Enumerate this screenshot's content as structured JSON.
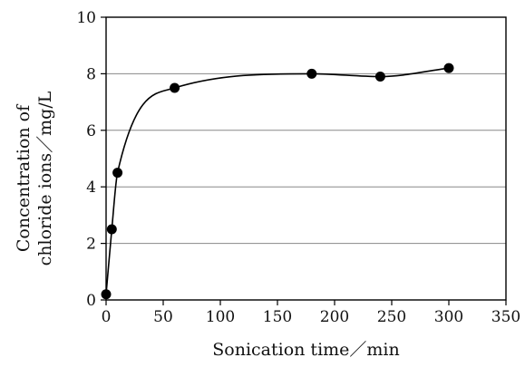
{
  "chart_data": {
    "type": "scatter",
    "xlabel": "Sonication time／min",
    "ylabel_lines": [
      "Concentration of",
      "chloride ions／mg/L"
    ],
    "xlim": [
      0,
      350
    ],
    "ylim": [
      0,
      10
    ],
    "x_ticks": [
      0,
      50,
      100,
      150,
      200,
      250,
      300,
      350
    ],
    "y_ticks": [
      0,
      2,
      4,
      6,
      8,
      10
    ],
    "grid": "horizontal",
    "smooth_line": true,
    "series": [
      {
        "x": [
          0,
          5,
          10,
          60,
          180,
          240,
          300
        ],
        "y": [
          0.2,
          2.5,
          4.5,
          7.5,
          8.0,
          7.9,
          8.2
        ]
      }
    ],
    "colors": {
      "marker": "#000000",
      "line": "#000000",
      "grid": "#888888"
    }
  }
}
